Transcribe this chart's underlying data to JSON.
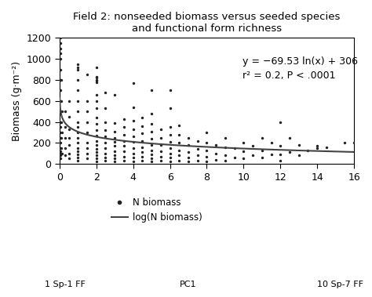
{
  "title_line1": "Field 2: nonseeded biomass versus seeded species",
  "title_line2": "and functional form richness",
  "xlabel_left": "1 Sp-1 FF",
  "xlabel_center": "PC1",
  "xlabel_right": "10 Sp-7 FF",
  "ylabel": "Biomass (g·m⁻²)",
  "equation": "y = −69.53 ln(x) + 306",
  "r2_text": "r² = 0.2, P < .0001",
  "xlim": [
    0,
    16
  ],
  "ylim": [
    0,
    1200
  ],
  "xticks": [
    0,
    2,
    4,
    6,
    8,
    10,
    12,
    14,
    16
  ],
  "yticks": [
    0,
    200,
    400,
    600,
    800,
    1000,
    1200
  ],
  "log_a": -69.53,
  "log_b": 306,
  "scatter_color": "#222222",
  "line_color": "#444444",
  "background_color": "#ffffff",
  "legend_dot_label": "N biomass",
  "legend_line_label": "log(N biomass)",
  "scatter_x": [
    0.05,
    0.05,
    0.05,
    0.05,
    0.05,
    0.05,
    0.05,
    0.05,
    0.05,
    0.05,
    0.05,
    0.05,
    0.05,
    0.05,
    0.05,
    0.05,
    0.05,
    0.05,
    0.05,
    0.05,
    0.1,
    0.1,
    0.1,
    0.1,
    0.1,
    0.15,
    0.15,
    0.15,
    0.3,
    0.3,
    0.3,
    0.3,
    0.3,
    0.5,
    0.5,
    0.5,
    0.5,
    0.5,
    0.5,
    0.5,
    1.0,
    1.0,
    1.0,
    1.0,
    1.0,
    1.0,
    1.0,
    1.0,
    1.0,
    1.0,
    1.0,
    1.0,
    1.0,
    1.0,
    1.0,
    1.0,
    1.0,
    1.5,
    1.5,
    1.5,
    1.5,
    1.5,
    1.5,
    1.5,
    1.5,
    1.5,
    2.0,
    2.0,
    2.0,
    2.0,
    2.0,
    2.0,
    2.0,
    2.0,
    2.0,
    2.0,
    2.0,
    2.0,
    2.0,
    2.0,
    2.0,
    2.0,
    2.0,
    2.0,
    2.0,
    2.0,
    2.5,
    2.5,
    2.5,
    2.5,
    2.5,
    2.5,
    2.5,
    2.5,
    2.5,
    2.5,
    3.0,
    3.0,
    3.0,
    3.0,
    3.0,
    3.0,
    3.0,
    3.0,
    3.0,
    3.0,
    3.5,
    3.5,
    3.5,
    3.5,
    3.5,
    3.5,
    3.5,
    3.5,
    4.0,
    4.0,
    4.0,
    4.0,
    4.0,
    4.0,
    4.0,
    4.0,
    4.0,
    4.0,
    4.5,
    4.5,
    4.5,
    4.5,
    4.5,
    4.5,
    4.5,
    4.5,
    5.0,
    5.0,
    5.0,
    5.0,
    5.0,
    5.0,
    5.0,
    5.0,
    5.0,
    5.0,
    5.5,
    5.5,
    5.5,
    5.5,
    5.5,
    5.5,
    6.0,
    6.0,
    6.0,
    6.0,
    6.0,
    6.0,
    6.0,
    6.0,
    6.0,
    6.5,
    6.5,
    6.5,
    6.5,
    6.5,
    6.5,
    7.0,
    7.0,
    7.0,
    7.0,
    7.0,
    7.5,
    7.5,
    7.5,
    7.5,
    8.0,
    8.0,
    8.0,
    8.0,
    8.0,
    8.5,
    8.5,
    8.5,
    9.0,
    9.0,
    9.0,
    9.0,
    9.5,
    9.5,
    10.0,
    10.0,
    10.0,
    10.5,
    10.5,
    11.0,
    11.0,
    11.0,
    11.5,
    11.5,
    12.0,
    12.0,
    12.0,
    12.0,
    12.5,
    12.5,
    13.0,
    13.0,
    13.5,
    14.0,
    14.0,
    14.5,
    15.5,
    16.0
  ],
  "scatter_y": [
    50,
    100,
    150,
    200,
    250,
    300,
    350,
    400,
    500,
    600,
    700,
    800,
    900,
    1000,
    1050,
    1100,
    1150,
    1200,
    80,
    120,
    150,
    250,
    400,
    600,
    800,
    100,
    300,
    500,
    80,
    150,
    250,
    350,
    500,
    50,
    100,
    180,
    250,
    330,
    450,
    600,
    30,
    60,
    90,
    120,
    150,
    200,
    250,
    300,
    350,
    400,
    500,
    600,
    700,
    800,
    900,
    920,
    950,
    50,
    100,
    150,
    200,
    300,
    400,
    500,
    600,
    850,
    20,
    50,
    80,
    110,
    140,
    180,
    220,
    270,
    320,
    380,
    440,
    530,
    600,
    660,
    790,
    800,
    820,
    830,
    920,
    780,
    30,
    60,
    100,
    150,
    200,
    260,
    320,
    400,
    530,
    680,
    20,
    50,
    80,
    120,
    170,
    210,
    250,
    310,
    390,
    660,
    30,
    70,
    120,
    170,
    220,
    280,
    350,
    430,
    20,
    60,
    100,
    150,
    210,
    260,
    330,
    410,
    540,
    770,
    30,
    70,
    110,
    160,
    220,
    290,
    360,
    440,
    20,
    50,
    90,
    130,
    180,
    240,
    310,
    380,
    480,
    700,
    30,
    70,
    120,
    180,
    250,
    330,
    20,
    60,
    100,
    150,
    210,
    280,
    350,
    530,
    700,
    30,
    80,
    130,
    200,
    280,
    370,
    20,
    60,
    110,
    180,
    250,
    30,
    80,
    140,
    220,
    20,
    70,
    130,
    200,
    300,
    40,
    100,
    180,
    30,
    80,
    160,
    250,
    60,
    150,
    50,
    120,
    200,
    80,
    170,
    60,
    130,
    250,
    90,
    200,
    30,
    90,
    170,
    400,
    110,
    250,
    80,
    180,
    130,
    150,
    170,
    160,
    200,
    200
  ]
}
